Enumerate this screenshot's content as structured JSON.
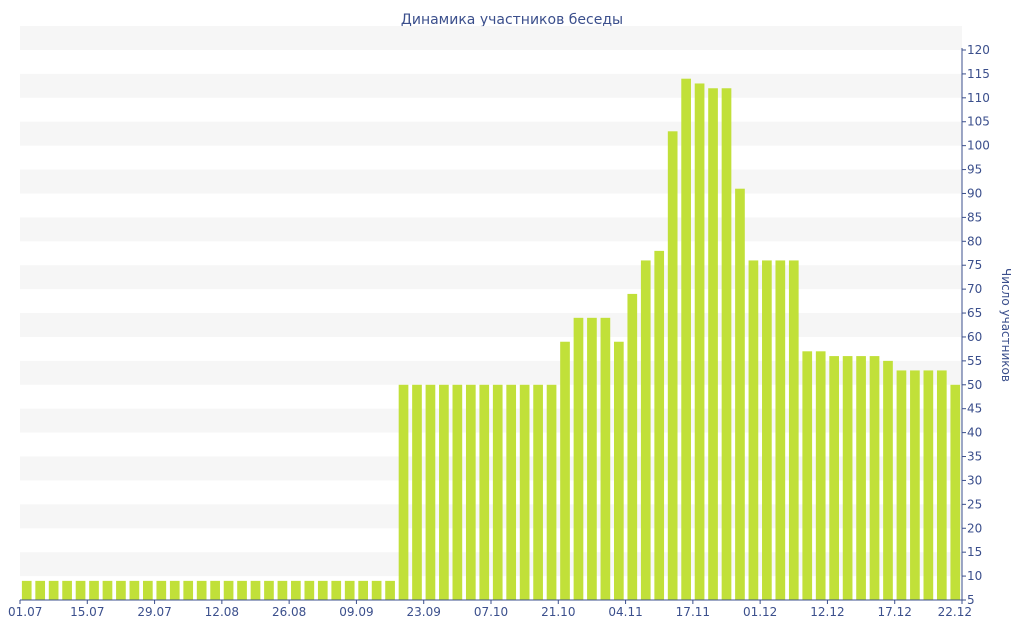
{
  "chart_data": {
    "type": "bar",
    "title": "Динамика участников беседы",
    "ylabel": "Число участников",
    "xlabel": "",
    "ylim": [
      5,
      120
    ],
    "ytick_step": 5,
    "grid": "horizontal alternating bands",
    "y_axis_position": "right",
    "bar_color": "#c1e039",
    "band_color": "#f6f6f6",
    "text_color": "#3b4f8c",
    "x_tick_labels": [
      "01.07",
      "15.07",
      "29.07",
      "12.08",
      "26.08",
      "09.09",
      "23.09",
      "07.10",
      "21.10",
      "04.11",
      "17.11",
      "01.12",
      "12.12",
      "17.12",
      "22.12"
    ],
    "values": [
      9,
      9,
      9,
      9,
      9,
      9,
      9,
      9,
      9,
      9,
      9,
      9,
      9,
      9,
      9,
      9,
      9,
      9,
      9,
      9,
      9,
      9,
      9,
      9,
      9,
      9,
      9,
      9,
      50,
      50,
      50,
      50,
      50,
      50,
      50,
      50,
      50,
      50,
      50,
      50,
      59,
      64,
      64,
      64,
      59,
      69,
      76,
      78,
      103,
      114,
      113,
      112,
      112,
      91,
      76,
      76,
      76,
      76,
      57,
      57,
      56,
      56,
      56,
      56,
      55,
      53,
      53,
      53,
      53,
      50
    ]
  }
}
